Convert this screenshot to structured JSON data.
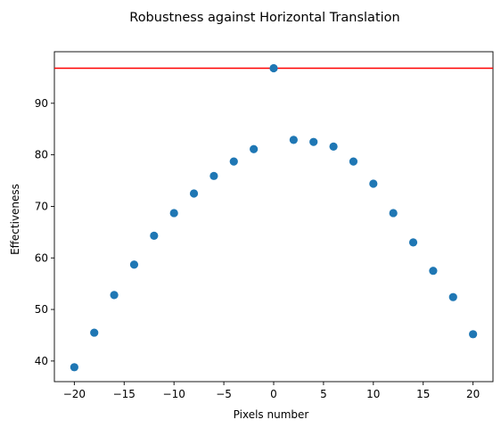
{
  "chart_data": {
    "type": "scatter",
    "title": "Robustness against Horizontal Translation",
    "xlabel": "Pixels number",
    "ylabel": "Effectiveness",
    "xlim": [
      -22,
      22
    ],
    "ylim": [
      36,
      100
    ],
    "xticks": [
      -20,
      -15,
      -10,
      -5,
      0,
      5,
      10,
      15,
      20
    ],
    "yticks": [
      40,
      50,
      60,
      70,
      80,
      90
    ],
    "grid": false,
    "series": [
      {
        "color": "#1f77b4",
        "points": [
          {
            "x": -20,
            "y": 38.8
          },
          {
            "x": -18,
            "y": 45.5
          },
          {
            "x": -16,
            "y": 52.8
          },
          {
            "x": -14,
            "y": 58.7
          },
          {
            "x": -12,
            "y": 64.3
          },
          {
            "x": -10,
            "y": 68.7
          },
          {
            "x": -8,
            "y": 72.5
          },
          {
            "x": -6,
            "y": 75.9
          },
          {
            "x": -4,
            "y": 78.7
          },
          {
            "x": -2,
            "y": 81.1
          },
          {
            "x": 0,
            "y": 96.8
          },
          {
            "x": 2,
            "y": 82.9
          },
          {
            "x": 4,
            "y": 82.5
          },
          {
            "x": 6,
            "y": 81.6
          },
          {
            "x": 8,
            "y": 78.7
          },
          {
            "x": 10,
            "y": 74.4
          },
          {
            "x": 12,
            "y": 68.7
          },
          {
            "x": 14,
            "y": 63.0
          },
          {
            "x": 16,
            "y": 57.5
          },
          {
            "x": 18,
            "y": 52.4
          },
          {
            "x": 20,
            "y": 45.2
          }
        ]
      }
    ],
    "reference_line": {
      "y": 96.8,
      "color": "#ff0000",
      "orientation": "horizontal"
    }
  }
}
